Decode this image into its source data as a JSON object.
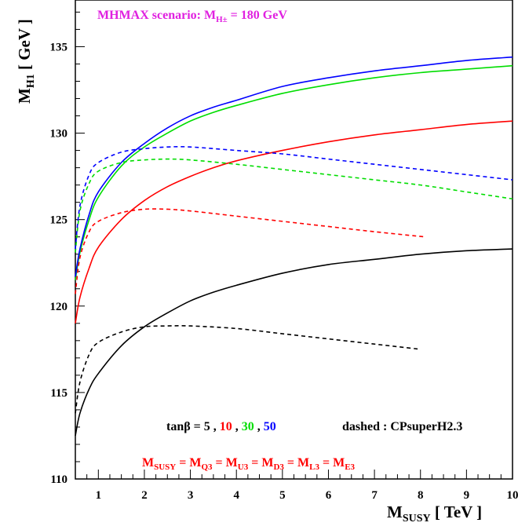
{
  "chart_data": {
    "type": "line",
    "title": "MHMAX scenario: M",
    "title_sub": "H±",
    "title_tail": " = 180 GeV",
    "title_color": "#e020e0",
    "ylabel_main": "M",
    "ylabel_sub": "H1",
    "ylabel_tail": " [ GeV ]",
    "xlabel_main": "M",
    "xlabel_sub": "SUSY",
    "xlabel_tail": " [ TeV ]",
    "xlim": [
      0.5,
      10
    ],
    "ylim": [
      110,
      137.7
    ],
    "x_ticks": [
      "1",
      "2",
      "3",
      "4",
      "5",
      "6",
      "7",
      "8",
      "9",
      "10"
    ],
    "y_ticks": [
      "110",
      "115",
      "120",
      "125",
      "130",
      "135"
    ],
    "grid": false,
    "legend": {
      "prefix": "tanβ = ",
      "items": [
        {
          "label": "5",
          "color": "#000000"
        },
        {
          "label": "10",
          "color": "#ff0000"
        },
        {
          "label": "30",
          "color": "#00dd00"
        },
        {
          "label": "50",
          "color": "#0000ff"
        }
      ],
      "sep": " , ",
      "dashed_note": "dashed : CPsuperH2.3"
    },
    "relation": {
      "color": "#ff0000",
      "terms": [
        {
          "main": "M",
          "sub": "SUSY"
        },
        {
          "main": "M",
          "sub": "Q3"
        },
        {
          "main": "M",
          "sub": "U3"
        },
        {
          "main": "M",
          "sub": "D3"
        },
        {
          "main": "M",
          "sub": "L3"
        },
        {
          "main": "M",
          "sub": "E3"
        }
      ],
      "eq": " = "
    },
    "series": [
      {
        "tanb": "5",
        "style": "solid",
        "color": "#000000",
        "x": [
          0.5,
          0.6,
          0.8,
          1,
          1.5,
          2,
          2.5,
          3,
          3.5,
          4,
          5,
          6,
          7,
          8,
          9,
          10
        ],
        "y": [
          112.5,
          113.8,
          115.2,
          116.1,
          117.7,
          118.8,
          119.6,
          120.3,
          120.8,
          121.2,
          121.9,
          122.4,
          122.7,
          123.0,
          123.2,
          123.3
        ]
      },
      {
        "tanb": "10",
        "style": "solid",
        "color": "#ff0000",
        "x": [
          0.5,
          0.6,
          0.8,
          1,
          1.5,
          2,
          2.5,
          3,
          3.5,
          4,
          5,
          6,
          7,
          8,
          9,
          10
        ],
        "y": [
          119.0,
          120.5,
          122.2,
          123.4,
          125.0,
          126.1,
          126.9,
          127.5,
          128.0,
          128.4,
          129.0,
          129.5,
          129.9,
          130.2,
          130.5,
          130.7
        ]
      },
      {
        "tanb": "30",
        "style": "solid",
        "color": "#00dd00",
        "x": [
          0.5,
          0.6,
          0.8,
          1,
          1.5,
          2,
          2.5,
          3,
          3.5,
          4,
          5,
          6,
          7,
          8,
          9,
          10
        ],
        "y": [
          121.5,
          123.1,
          125.0,
          126.3,
          128.1,
          129.2,
          130.0,
          130.7,
          131.2,
          131.6,
          132.3,
          132.8,
          133.2,
          133.5,
          133.7,
          133.9
        ]
      },
      {
        "tanb": "50",
        "style": "solid",
        "color": "#0000ff",
        "x": [
          0.5,
          0.6,
          0.8,
          1,
          1.5,
          2,
          2.5,
          3,
          3.5,
          4,
          5,
          6,
          7,
          8,
          9,
          10
        ],
        "y": [
          121.7,
          123.3,
          125.3,
          126.6,
          128.3,
          129.4,
          130.3,
          131.0,
          131.5,
          131.9,
          132.7,
          133.2,
          133.6,
          133.9,
          134.2,
          134.4
        ]
      },
      {
        "tanb": "5",
        "style": "dashed",
        "color": "#000000",
        "x": [
          0.5,
          0.6,
          0.8,
          1,
          1.5,
          2,
          2.5,
          3,
          4,
          5,
          6,
          7,
          8
        ],
        "y": [
          113.8,
          115.6,
          117.2,
          117.9,
          118.5,
          118.8,
          118.85,
          118.85,
          118.7,
          118.4,
          118.1,
          117.8,
          117.5
        ]
      },
      {
        "tanb": "10",
        "style": "dashed",
        "color": "#ff0000",
        "x": [
          0.5,
          0.6,
          0.8,
          1,
          1.5,
          2,
          2.5,
          3,
          4,
          5,
          6,
          7,
          8.1
        ],
        "y": [
          120.7,
          122.8,
          124.3,
          124.9,
          125.4,
          125.6,
          125.6,
          125.5,
          125.2,
          124.9,
          124.6,
          124.3,
          124.0
        ]
      },
      {
        "tanb": "30",
        "style": "dashed",
        "color": "#00dd00",
        "x": [
          0.5,
          0.6,
          0.8,
          1,
          1.5,
          2,
          2.5,
          3,
          4,
          5,
          6,
          7,
          8,
          9,
          10
        ],
        "y": [
          123.1,
          125.5,
          127.1,
          127.8,
          128.3,
          128.45,
          128.5,
          128.45,
          128.2,
          127.9,
          127.6,
          127.3,
          127.0,
          126.6,
          126.2
        ]
      },
      {
        "tanb": "50",
        "style": "dashed",
        "color": "#0000ff",
        "x": [
          0.5,
          0.6,
          0.8,
          1,
          1.5,
          2,
          2.5,
          3,
          4,
          5,
          6,
          7,
          8,
          9,
          10
        ],
        "y": [
          123.3,
          125.8,
          127.6,
          128.3,
          128.9,
          129.1,
          129.2,
          129.2,
          129.0,
          128.8,
          128.5,
          128.2,
          127.9,
          127.6,
          127.3
        ]
      }
    ]
  }
}
